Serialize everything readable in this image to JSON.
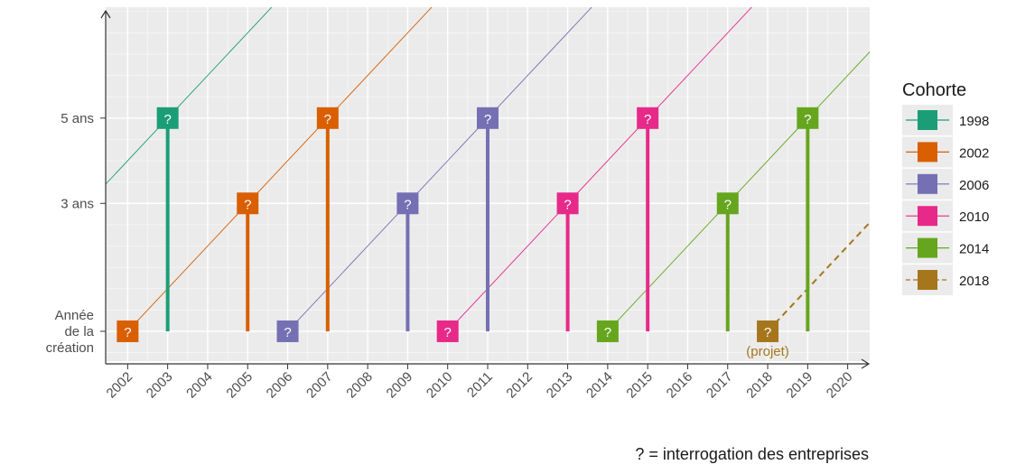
{
  "chart_data": {
    "type": "line",
    "x_ticks": [
      "2002",
      "2003",
      "2004",
      "2005",
      "2006",
      "2007",
      "2008",
      "2009",
      "2010",
      "2011",
      "2012",
      "2013",
      "2014",
      "2015",
      "2016",
      "2017",
      "2018",
      "2019",
      "2020"
    ],
    "y_ticks": [
      {
        "value": 0,
        "lines": [
          "Année",
          "de la",
          "création"
        ]
      },
      {
        "value": 3,
        "lines": [
          "3 ans"
        ]
      },
      {
        "value": 5,
        "lines": [
          "5 ans"
        ]
      }
    ],
    "xlim": [
      2001.45,
      2020.55
    ],
    "ylim": [
      -0.7,
      7.6
    ],
    "legend_title": "Cohorte",
    "legend_position": "right",
    "marker_text": "?",
    "note": "? = interrogation des entreprises",
    "projet_label": "(projet)",
    "cohorts": [
      {
        "name": "1998",
        "color": "#1b9e77",
        "start": 1998,
        "surveys": [
          2003
        ],
        "stem_ages": [
          5
        ],
        "projected": false
      },
      {
        "name": "2002",
        "color": "#d95f02",
        "start": 2002,
        "surveys": [
          2002,
          2005,
          2007
        ],
        "stem_ages": [
          3,
          5
        ],
        "projected": false
      },
      {
        "name": "2006",
        "color": "#7570b3",
        "start": 2006,
        "surveys": [
          2006,
          2009,
          2011
        ],
        "stem_ages": [
          3,
          5
        ],
        "projected": false
      },
      {
        "name": "2010",
        "color": "#e7298a",
        "start": 2010,
        "surveys": [
          2010,
          2013,
          2015
        ],
        "stem_ages": [
          3,
          5
        ],
        "projected": false
      },
      {
        "name": "2014",
        "color": "#66a61e",
        "start": 2014,
        "surveys": [
          2014,
          2017,
          2019
        ],
        "stem_ages": [
          3,
          5
        ],
        "projected": false
      },
      {
        "name": "2018",
        "color": "#a6761d",
        "start": 2018,
        "surveys": [
          2018
        ],
        "stem_ages": [],
        "projected": true
      }
    ]
  }
}
